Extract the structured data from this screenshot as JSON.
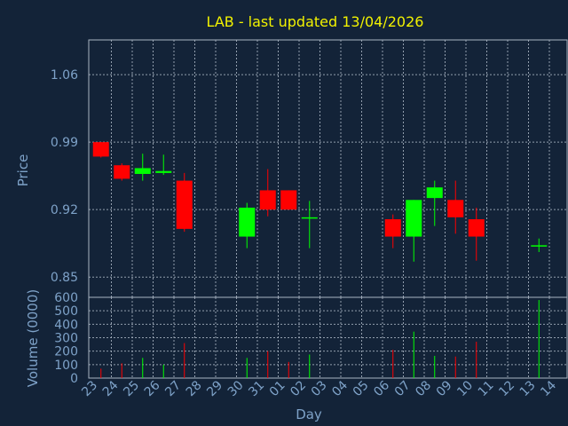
{
  "chart_data": [
    {
      "type": "candlestick",
      "title": "LAB - last updated 13/04/2026",
      "ylabel": "Price",
      "ylim": [
        0.829,
        1.096
      ],
      "yticks": [
        "1.06",
        "0.99",
        "0.92",
        "0.85"
      ],
      "ytick_values": [
        1.06,
        0.99,
        0.92,
        0.85
      ],
      "grid": true,
      "categories": [
        "23",
        "24",
        "25",
        "26",
        "27",
        "28",
        "29",
        "30",
        "31",
        "01",
        "02",
        "03",
        "04",
        "05",
        "06",
        "07",
        "08",
        "09",
        "10",
        "11",
        "12",
        "13",
        "14"
      ],
      "candles": [
        {
          "day": "23",
          "open": 0.99,
          "high": 0.99,
          "low": 0.974,
          "close": 0.975
        },
        {
          "day": "24",
          "open": 0.966,
          "high": 0.968,
          "low": 0.95,
          "close": 0.952
        },
        {
          "day": "25",
          "open": 0.957,
          "high": 0.978,
          "low": 0.95,
          "close": 0.963
        },
        {
          "day": "26",
          "open": 0.958,
          "high": 0.977,
          "low": 0.956,
          "close": 0.96
        },
        {
          "day": "27",
          "open": 0.95,
          "high": 0.958,
          "low": 0.897,
          "close": 0.9
        },
        {
          "day": "30",
          "open": 0.892,
          "high": 0.927,
          "low": 0.88,
          "close": 0.922
        },
        {
          "day": "31",
          "open": 0.94,
          "high": 0.962,
          "low": 0.913,
          "close": 0.92
        },
        {
          "day": "01",
          "open": 0.94,
          "high": 0.94,
          "low": 0.92,
          "close": 0.92
        },
        {
          "day": "02",
          "open": 0.912,
          "high": 0.929,
          "low": 0.88,
          "close": 0.912
        },
        {
          "day": "06",
          "open": 0.91,
          "high": 0.915,
          "low": 0.88,
          "close": 0.892
        },
        {
          "day": "07",
          "open": 0.892,
          "high": 0.93,
          "low": 0.866,
          "close": 0.93
        },
        {
          "day": "08",
          "open": 0.932,
          "high": 0.95,
          "low": 0.903,
          "close": 0.943
        },
        {
          "day": "09",
          "open": 0.93,
          "high": 0.95,
          "low": 0.895,
          "close": 0.912
        },
        {
          "day": "10",
          "open": 0.91,
          "high": 0.922,
          "low": 0.867,
          "close": 0.892
        },
        {
          "day": "13",
          "open": 0.882,
          "high": 0.89,
          "low": 0.876,
          "close": 0.883
        }
      ],
      "up_color": "#00ff00",
      "down_color": "#ff0000"
    },
    {
      "type": "bar",
      "ylabel": "Volume (0000)",
      "xlabel": "Day",
      "ylim": [
        0,
        600
      ],
      "yticks": [
        "600",
        "500",
        "400",
        "300",
        "200",
        "100",
        "0"
      ],
      "ytick_values": [
        600,
        500,
        400,
        300,
        200,
        100,
        0
      ],
      "grid": true,
      "categories": [
        "23",
        "24",
        "25",
        "26",
        "27",
        "28",
        "29",
        "30",
        "31",
        "01",
        "02",
        "03",
        "04",
        "05",
        "06",
        "07",
        "08",
        "09",
        "10",
        "11",
        "12",
        "13",
        "14"
      ],
      "bars": [
        {
          "day": "23",
          "value": 70,
          "color": "#ff0000"
        },
        {
          "day": "24",
          "value": 110,
          "color": "#ff0000"
        },
        {
          "day": "25",
          "value": 150,
          "color": "#00ff00"
        },
        {
          "day": "26",
          "value": 100,
          "color": "#00ff00"
        },
        {
          "day": "27",
          "value": 260,
          "color": "#ff0000"
        },
        {
          "day": "30",
          "value": 150,
          "color": "#00ff00"
        },
        {
          "day": "31",
          "value": 200,
          "color": "#ff0000"
        },
        {
          "day": "01",
          "value": 120,
          "color": "#ff0000"
        },
        {
          "day": "02",
          "value": 175,
          "color": "#00ff00"
        },
        {
          "day": "06",
          "value": 210,
          "color": "#ff0000"
        },
        {
          "day": "07",
          "value": 345,
          "color": "#00ff00"
        },
        {
          "day": "08",
          "value": 165,
          "color": "#00ff00"
        },
        {
          "day": "09",
          "value": 160,
          "color": "#ff0000"
        },
        {
          "day": "10",
          "value": 270,
          "color": "#ff0000"
        },
        {
          "day": "13",
          "value": 580,
          "color": "#00ff00"
        }
      ]
    }
  ],
  "colors": {
    "background": "#132338",
    "gridline": "#a9b4c2",
    "label": "#7ea2c8",
    "title": "#f2f200"
  }
}
